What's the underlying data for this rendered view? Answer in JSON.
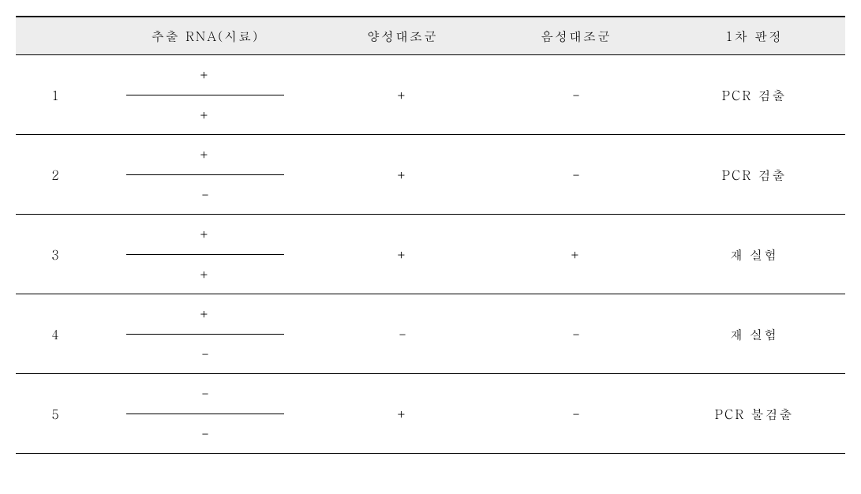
{
  "table": {
    "header": {
      "col_idx": "",
      "col_rna": "추출 RNA(시료)",
      "col_pos": "양성대조군",
      "col_neg": "음성대조군",
      "col_res": "1차 판정"
    },
    "rows": [
      {
        "idx": "1",
        "rna_top": "+",
        "rna_bot": "+",
        "pos": "+",
        "neg": "-",
        "res": "PCR 검출"
      },
      {
        "idx": "2",
        "rna_top": "+",
        "rna_bot": "-",
        "pos": "+",
        "neg": "-",
        "res": "PCR 검출"
      },
      {
        "idx": "3",
        "rna_top": "+",
        "rna_bot": "+",
        "pos": "+",
        "neg": "+",
        "res": "재 실험"
      },
      {
        "idx": "4",
        "rna_top": "+",
        "rna_bot": "-",
        "pos": "-",
        "neg": "-",
        "res": "재 실험"
      },
      {
        "idx": "5",
        "rna_top": "-",
        "rna_bot": "-",
        "pos": "+",
        "neg": "-",
        "res": "PCR 불검출"
      }
    ],
    "colors": {
      "header_bg": "#ededed",
      "border": "#000000",
      "text": "#000000",
      "background": "#ffffff"
    }
  }
}
